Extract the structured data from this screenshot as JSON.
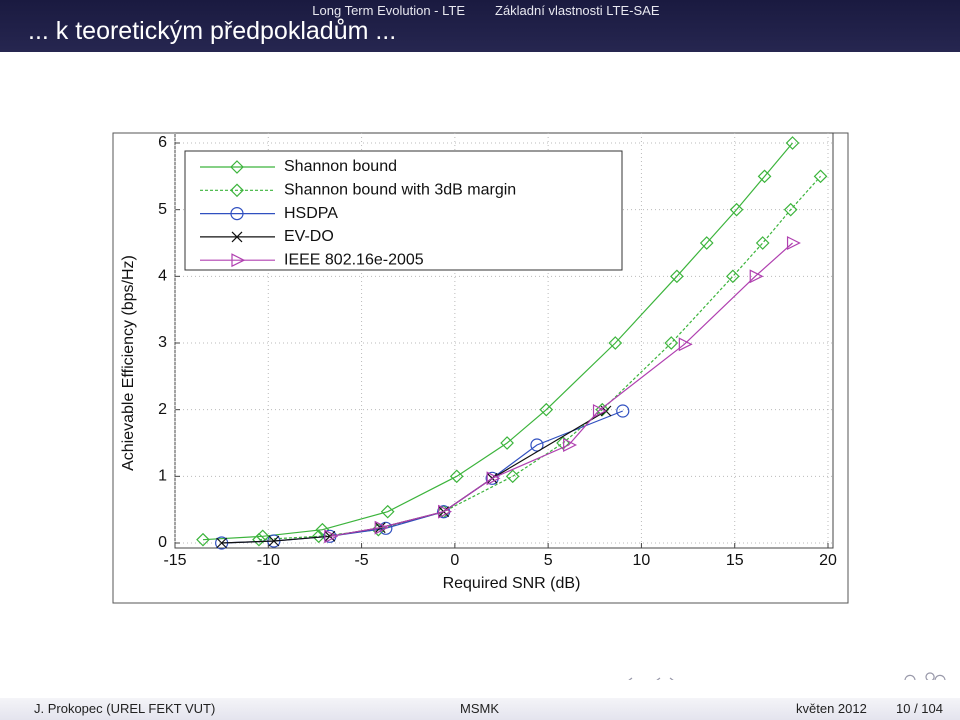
{
  "header": {
    "section_left": "Long Term Evolution - LTE",
    "section_right": "Základní vlastnosti LTE-SAE",
    "title": "... k teoretickým předpokladům ..."
  },
  "footer": {
    "author": "J. Prokopec (UREL FEKT VUT)",
    "course": "MSMK",
    "date": "květen 2012",
    "page": "10 / 104"
  },
  "chart_data": {
    "type": "line",
    "xlabel": "Required SNR (dB)",
    "ylabel": "Achievable Efficiency (bps/Hz)",
    "xlim": [
      -15,
      20
    ],
    "ylim": [
      0,
      6
    ],
    "xticks": [
      -15,
      -10,
      -5,
      0,
      5,
      10,
      15,
      20
    ],
    "yticks": [
      0,
      1,
      2,
      3,
      4,
      5,
      6
    ],
    "grid": true,
    "legend": "upper left",
    "series": [
      {
        "name": "Shannon bound",
        "color": "#3cb43c",
        "linestyle": "solid",
        "marker": "diamond",
        "x": [
          -13.5,
          -10.3,
          -7.1,
          -3.6,
          0.1,
          2.8,
          4.9,
          8.6,
          11.9,
          13.5,
          15.1,
          16.6,
          18.1
        ],
        "values": [
          0.05,
          0.1,
          0.2,
          0.47,
          1,
          1.5,
          2,
          3,
          4,
          4.5,
          5,
          5.5,
          6
        ]
      },
      {
        "name": "Shannon bound with 3dB margin",
        "color": "#3cb43c",
        "linestyle": "dashed",
        "marker": "diamond",
        "x": [
          -10.5,
          -7.3,
          -4.1,
          -0.6,
          3.1,
          5.8,
          7.9,
          11.6,
          14.9,
          16.5,
          18,
          19.6
        ],
        "values": [
          0.05,
          0.1,
          0.2,
          0.47,
          1,
          1.5,
          2,
          3,
          4,
          4.5,
          5,
          5.5
        ]
      },
      {
        "name": "HSDPA",
        "color": "#3050c0",
        "linestyle": "solid",
        "marker": "circle",
        "x": [
          -12.5,
          -9.7,
          -6.7,
          -3.7,
          -0.6,
          2,
          4.4,
          9
        ],
        "values": [
          0,
          0.03,
          0.1,
          0.22,
          0.47,
          0.97,
          1.47,
          1.98
        ]
      },
      {
        "name": "EV-DO",
        "color": "#111111",
        "linestyle": "solid",
        "marker": "x",
        "x": [
          -12.5,
          -9.7,
          -6.7,
          -4,
          -0.6,
          2,
          8.1
        ],
        "values": [
          0,
          0.03,
          0.1,
          0.23,
          0.47,
          0.97,
          1.98
        ]
      },
      {
        "name": "IEEE 802.16e-2005",
        "color": "#b040b0",
        "linestyle": "solid",
        "marker": "triangle",
        "x": [
          -6.7,
          -4,
          -0.6,
          2,
          6.1,
          7.7,
          12.3,
          16.1,
          18.1
        ],
        "values": [
          0.1,
          0.23,
          0.47,
          0.97,
          1.47,
          1.98,
          2.98,
          4,
          4.5
        ]
      }
    ]
  }
}
